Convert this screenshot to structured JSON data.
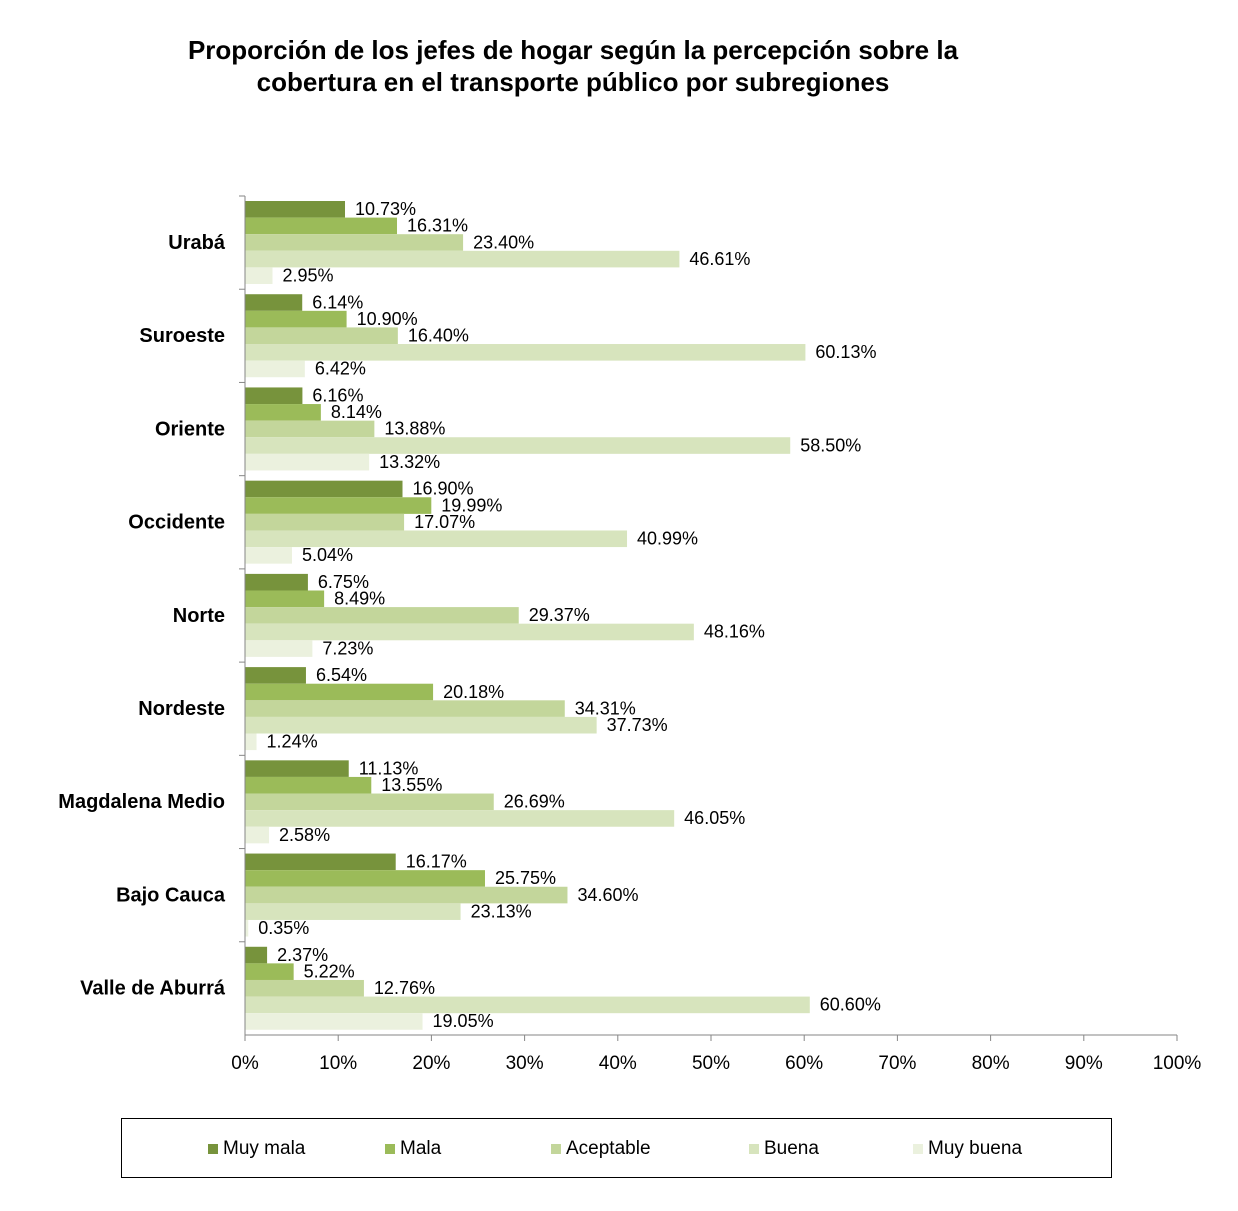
{
  "title_lines": [
    "Proporción de los jefes de hogar  según la percepción sobre la",
    "cobertura en el transporte público por subregiones"
  ],
  "chart_data": {
    "type": "bar",
    "orientation": "horizontal",
    "categories": [
      "Urabá",
      "Suroeste",
      "Oriente",
      "Occidente",
      "Norte",
      "Nordeste",
      "Magdalena Medio",
      "Bajo Cauca",
      "Valle de Aburrá"
    ],
    "series": [
      {
        "name": "Muy mala",
        "color": "#77933c",
        "values": [
          10.73,
          6.14,
          6.16,
          16.9,
          6.75,
          6.54,
          11.13,
          16.17,
          2.37
        ]
      },
      {
        "name": "Mala",
        "color": "#9bbb59",
        "values": [
          16.31,
          10.9,
          8.14,
          19.99,
          8.49,
          20.18,
          13.55,
          25.75,
          5.22
        ]
      },
      {
        "name": "Aceptable",
        "color": "#c3d69b",
        "values": [
          23.4,
          16.4,
          13.88,
          17.07,
          29.37,
          34.31,
          26.69,
          34.6,
          12.76
        ]
      },
      {
        "name": "Buena",
        "color": "#d7e4bd",
        "values": [
          46.61,
          60.13,
          58.5,
          40.99,
          48.16,
          37.73,
          46.05,
          23.13,
          60.6
        ]
      },
      {
        "name": "Muy buena",
        "color": "#ebf1de",
        "values": [
          2.95,
          6.42,
          13.32,
          5.04,
          7.23,
          1.24,
          2.58,
          0.35,
          19.05
        ]
      }
    ],
    "data_labels": [
      [
        "10.73%",
        "16.31%",
        "23.40%",
        "46.61%",
        "2.95%"
      ],
      [
        "6.14%",
        "10.90%",
        "16.40%",
        "60.13%",
        "6.42%"
      ],
      [
        "6.16%",
        "8.14%",
        "13.88%",
        "58.50%",
        "13.32%"
      ],
      [
        "16.90%",
        "19.99%",
        "17.07%",
        "40.99%",
        "5.04%"
      ],
      [
        "6.75%",
        "8.49%",
        "29.37%",
        "48.16%",
        "7.23%"
      ],
      [
        "6.54%",
        "20.18%",
        "34.31%",
        "37.73%",
        "1.24%"
      ],
      [
        "11.13%",
        "13.55%",
        "26.69%",
        "46.05%",
        "2.58%"
      ],
      [
        "16.17%",
        "25.75%",
        "34.60%",
        "23.13%",
        "0.35%"
      ],
      [
        "2.37%",
        "5.22%",
        "12.76%",
        "60.60%",
        "19.05%"
      ]
    ],
    "xlim": [
      0,
      100
    ],
    "x_ticks": [
      "0%",
      "10%",
      "20%",
      "30%",
      "40%",
      "50%",
      "60%",
      "70%",
      "80%",
      "90%",
      "100%"
    ],
    "xlabel": "",
    "ylabel": "",
    "grid": false,
    "legend_position": "bottom"
  }
}
